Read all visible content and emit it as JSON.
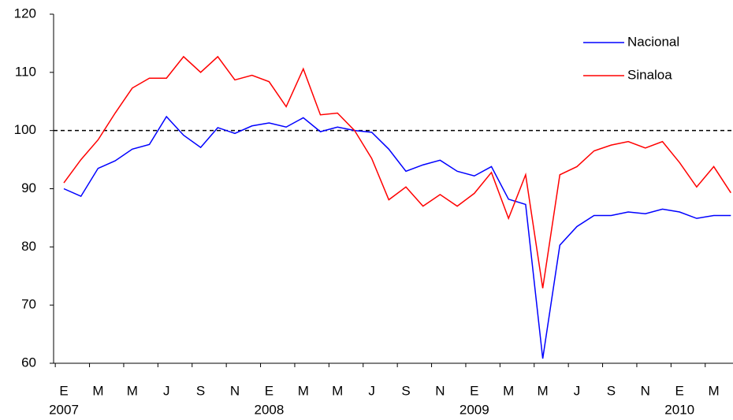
{
  "chart_data": {
    "type": "line",
    "categories": [
      "E",
      null,
      "M",
      null,
      "M",
      null,
      "J",
      null,
      "S",
      null,
      "N",
      null,
      "E",
      null,
      "M",
      null,
      "M",
      null,
      "J",
      null,
      "S",
      null,
      "N",
      null,
      "E",
      null,
      "M",
      null,
      "M",
      null,
      "J",
      null,
      "S",
      null,
      "N",
      null,
      "E",
      null,
      "M",
      null
    ],
    "category_years": [
      "2007",
      null,
      null,
      null,
      null,
      null,
      null,
      null,
      null,
      null,
      null,
      null,
      "2008",
      null,
      null,
      null,
      null,
      null,
      null,
      null,
      null,
      null,
      null,
      null,
      "2009",
      null,
      null,
      null,
      null,
      null,
      null,
      null,
      null,
      null,
      null,
      null,
      "2010",
      null,
      null,
      null
    ],
    "series": [
      {
        "name": "Nacional",
        "color": "#0000ff",
        "values": [
          90,
          88.7,
          93.5,
          94.8,
          96.8,
          97.6,
          102.4,
          99.2,
          97.1,
          100.5,
          99.5,
          100.8,
          101.3,
          100.6,
          102.2,
          99.8,
          100.6,
          100,
          99.7,
          96.8,
          93,
          94.1,
          94.9,
          93,
          92.2,
          93.8,
          88.2,
          87.3,
          60.8,
          80.3,
          83.5,
          85.4,
          85.4,
          86,
          85.7,
          86.5,
          86,
          84.9,
          85.4,
          85.4
        ]
      },
      {
        "name": "Sinaloa",
        "color": "#ff0000",
        "values": [
          91,
          95,
          98.4,
          103,
          107.3,
          109,
          109,
          112.7,
          110,
          112.7,
          108.7,
          109.5,
          108.4,
          104.1,
          110.6,
          102.7,
          103,
          100,
          95.2,
          88.1,
          90.3,
          87,
          89,
          87,
          89.2,
          92.8,
          84.9,
          92.4,
          72.9,
          92.4,
          93.8,
          96.5,
          97.5,
          98.1,
          97,
          98.1,
          94.5,
          90.3,
          93.8,
          89.3
        ]
      }
    ],
    "reference_line": 100,
    "ylim": [
      60,
      120
    ],
    "yticks": [
      60,
      70,
      80,
      90,
      100,
      110,
      120
    ],
    "legend": "top-right"
  }
}
